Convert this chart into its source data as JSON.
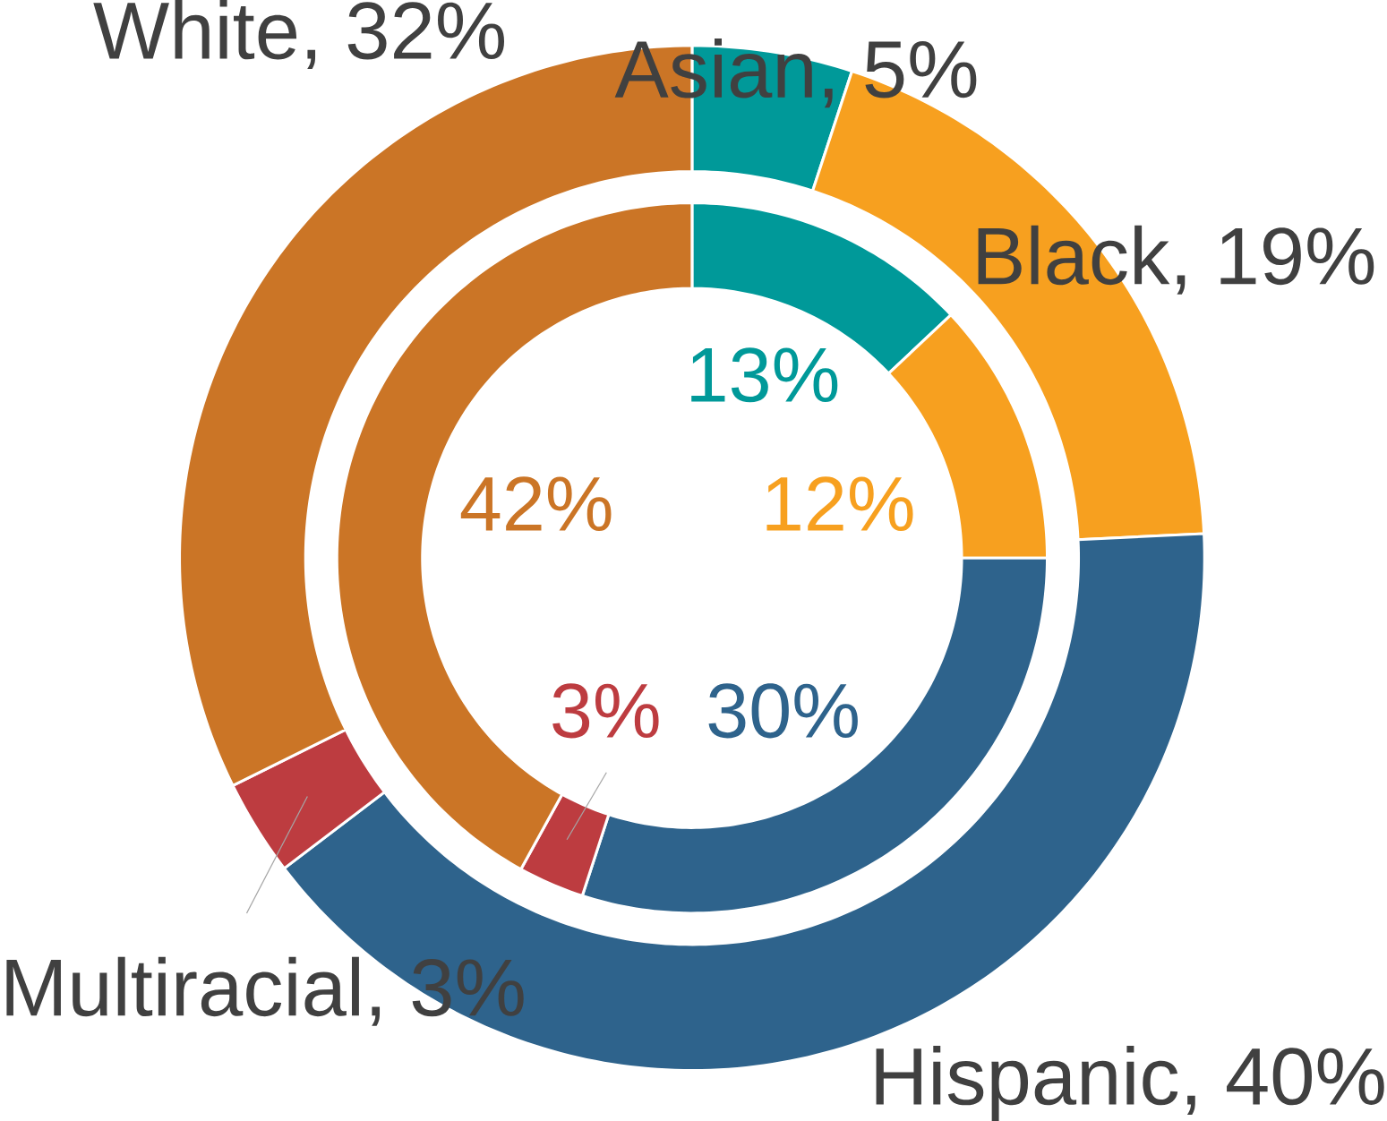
{
  "chart_data": {
    "type": "donut",
    "categories": [
      "Asian",
      "Black",
      "Hispanic",
      "Multiracial",
      "White"
    ],
    "colors": [
      "#009999",
      "#f7a01f",
      "#2e638c",
      "#bd3c40",
      "#cb7526"
    ],
    "series": [
      {
        "values": [
          5,
          19,
          40,
          3,
          32
        ],
        "value_labels": [
          ", 5%",
          ", 19%",
          ", 40%",
          ", 3%",
          ", 32%"
        ]
      },
      {
        "values": [
          13,
          12,
          30,
          3,
          42
        ],
        "value_labels": [
          "13%",
          "12%",
          "30%",
          "3%",
          "42%"
        ]
      }
    ]
  }
}
